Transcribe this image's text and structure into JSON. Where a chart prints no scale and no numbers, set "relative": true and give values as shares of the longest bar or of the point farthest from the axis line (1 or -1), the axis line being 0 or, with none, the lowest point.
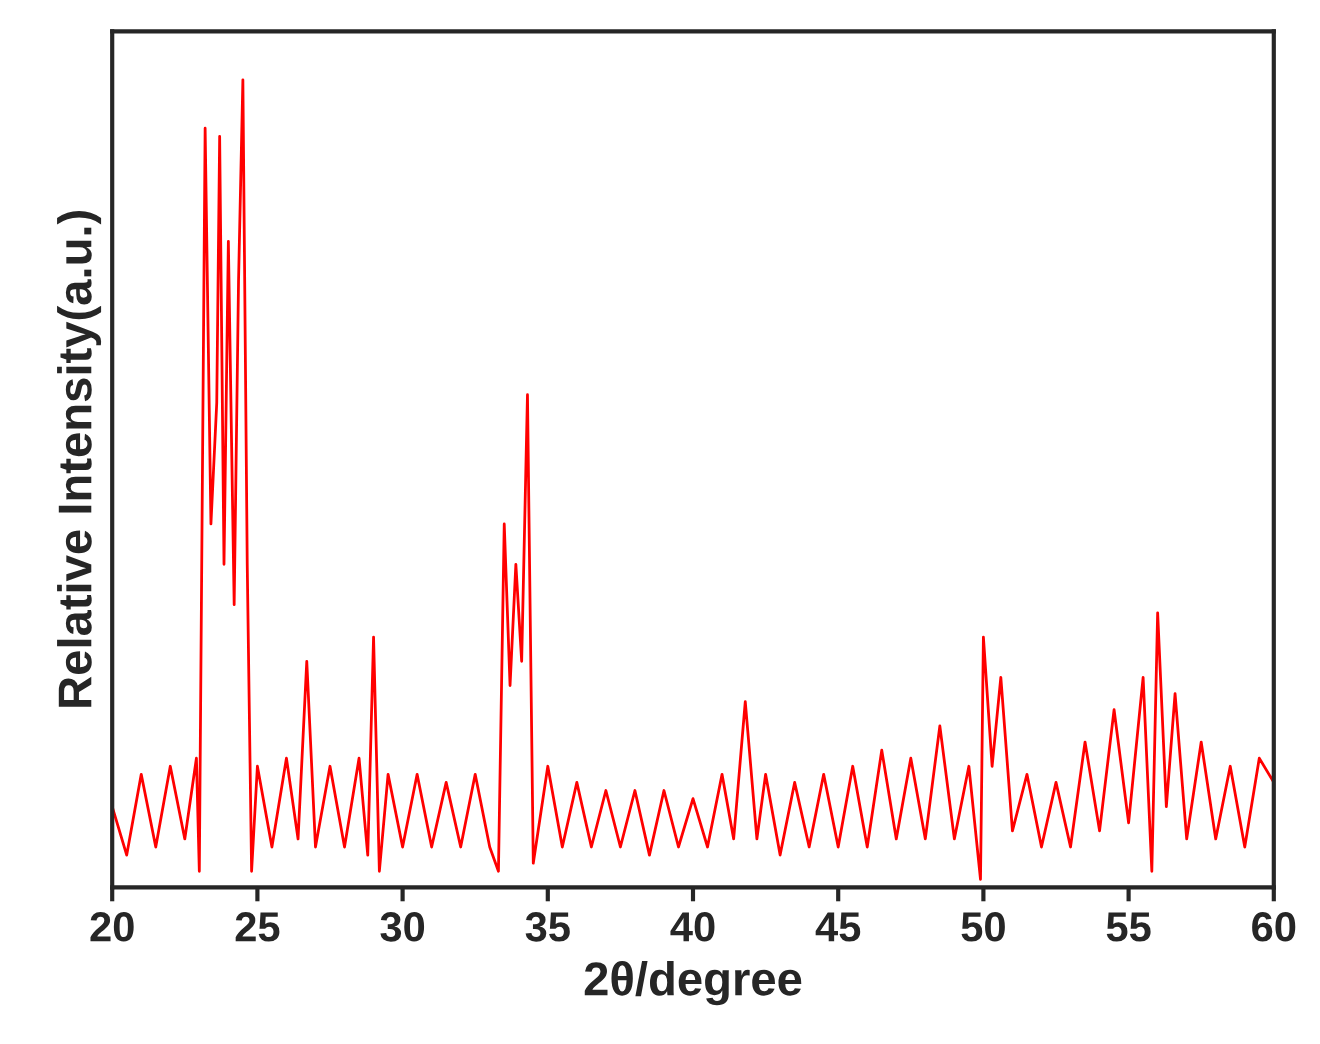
{
  "chart_data": {
    "type": "line",
    "xlabel": "2θ/degree",
    "ylabel": "Relative Intensity(a.u.)",
    "relative": true,
    "tick_labels": "x",
    "xlim": [
      20,
      60
    ],
    "xticks": [
      20,
      25,
      30,
      35,
      40,
      45,
      50,
      55,
      60
    ],
    "series": [
      {
        "color": "#ff0000",
        "x": [
          20.0,
          20.5,
          21.0,
          21.5,
          22.0,
          22.5,
          22.9,
          23.0,
          23.2,
          23.4,
          23.6,
          23.7,
          23.85,
          24.0,
          24.2,
          24.35,
          24.5,
          24.65,
          24.8,
          25.0,
          25.5,
          26.0,
          26.4,
          26.7,
          27.0,
          27.5,
          28.0,
          28.5,
          28.8,
          29.0,
          29.2,
          29.5,
          30.0,
          30.5,
          31.0,
          31.5,
          32.0,
          32.5,
          33.0,
          33.3,
          33.5,
          33.7,
          33.9,
          34.1,
          34.3,
          34.5,
          35.0,
          35.5,
          36.0,
          36.5,
          37.0,
          37.5,
          38.0,
          38.5,
          39.0,
          39.5,
          40.0,
          40.5,
          41.0,
          41.4,
          41.8,
          42.2,
          42.5,
          43.0,
          43.5,
          44.0,
          44.5,
          45.0,
          45.5,
          46.0,
          46.5,
          47.0,
          47.5,
          48.0,
          48.5,
          49.0,
          49.5,
          49.9,
          50.0,
          50.3,
          50.6,
          51.0,
          51.5,
          52.0,
          52.5,
          53.0,
          53.5,
          54.0,
          54.5,
          55.0,
          55.5,
          55.8,
          56.0,
          56.3,
          56.6,
          57.0,
          57.5,
          58.0,
          58.5,
          59.0,
          59.5,
          60.0
        ],
        "values": [
          0.1,
          0.04,
          0.14,
          0.05,
          0.15,
          0.06,
          0.16,
          0.02,
          0.94,
          0.45,
          0.6,
          0.93,
          0.4,
          0.8,
          0.35,
          0.75,
          1.0,
          0.4,
          0.02,
          0.15,
          0.05,
          0.16,
          0.06,
          0.28,
          0.05,
          0.15,
          0.05,
          0.16,
          0.04,
          0.31,
          0.02,
          0.14,
          0.05,
          0.14,
          0.05,
          0.13,
          0.05,
          0.14,
          0.05,
          0.02,
          0.45,
          0.25,
          0.4,
          0.28,
          0.61,
          0.03,
          0.15,
          0.05,
          0.13,
          0.05,
          0.12,
          0.05,
          0.12,
          0.04,
          0.12,
          0.05,
          0.11,
          0.05,
          0.14,
          0.06,
          0.23,
          0.06,
          0.14,
          0.04,
          0.13,
          0.05,
          0.14,
          0.05,
          0.15,
          0.05,
          0.17,
          0.06,
          0.16,
          0.06,
          0.2,
          0.06,
          0.15,
          0.01,
          0.31,
          0.15,
          0.26,
          0.07,
          0.14,
          0.05,
          0.13,
          0.05,
          0.18,
          0.07,
          0.22,
          0.08,
          0.26,
          0.02,
          0.34,
          0.1,
          0.24,
          0.06,
          0.18,
          0.06,
          0.15,
          0.05,
          0.16,
          0.13
        ]
      }
    ]
  }
}
